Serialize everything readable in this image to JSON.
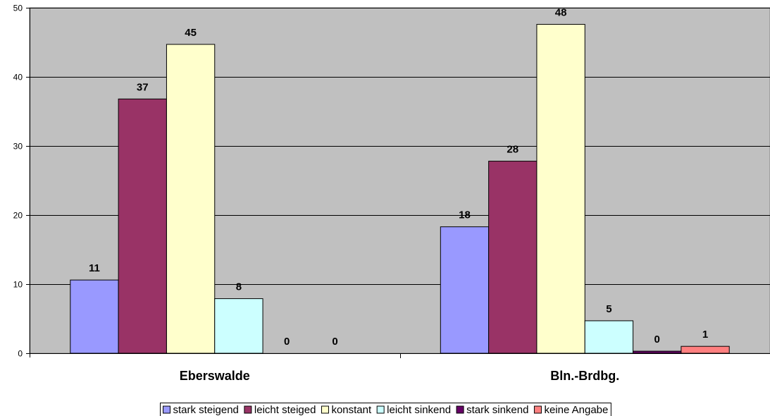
{
  "chart_data": {
    "type": "bar",
    "categories": [
      "Eberswalde",
      "Bln.-Brdbg."
    ],
    "series": [
      {
        "name": "stark steigend",
        "values": [
          10.6,
          18.3
        ],
        "labels": [
          "11",
          "18"
        ],
        "color": "#9999FF"
      },
      {
        "name": "leicht steiged",
        "values": [
          36.8,
          27.8
        ],
        "labels": [
          "37",
          "28"
        ],
        "color": "#993366"
      },
      {
        "name": "konstant",
        "values": [
          44.7,
          47.6
        ],
        "labels": [
          "45",
          "48"
        ],
        "color": "#FFFFCC"
      },
      {
        "name": "leicht sinkend",
        "values": [
          7.9,
          4.7
        ],
        "labels": [
          "8",
          "5"
        ],
        "color": "#CCFFFF"
      },
      {
        "name": "stark sinkend",
        "values": [
          0,
          0.3
        ],
        "labels": [
          "0",
          "0"
        ],
        "color": "#660066"
      },
      {
        "name": "keine Angabe",
        "values": [
          0,
          1.0
        ],
        "labels": [
          "0",
          "1"
        ],
        "color": "#FF8080"
      }
    ],
    "ylim": [
      0,
      50
    ],
    "yticks": [
      0,
      10,
      20,
      30,
      40,
      50
    ],
    "ytick_labels": [
      "0",
      "10",
      "20",
      "30",
      "40",
      "50"
    ],
    "plot_background": "#C0C0C0",
    "grid": true,
    "legend": "bottom-center"
  }
}
